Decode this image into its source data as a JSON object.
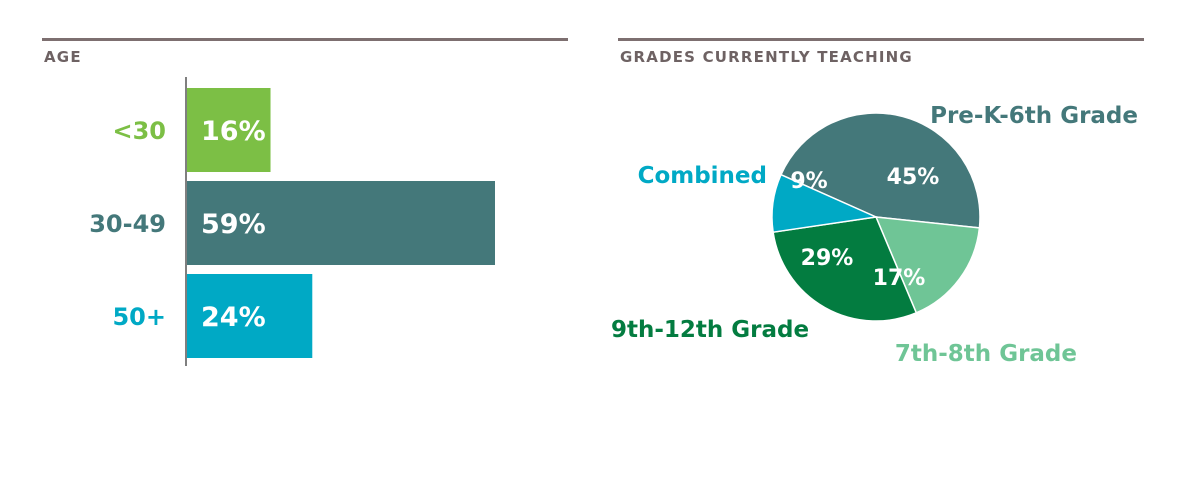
{
  "age_panel": {
    "title": "AGE"
  },
  "grades_panel": {
    "title": "GRADES CURRENTLY TEACHING"
  },
  "colors": {
    "light_green": "#7cbf45",
    "teal": "#44787a",
    "cyan": "#00a9c5",
    "dark_green": "#037c40",
    "mint": "#6fc596",
    "rule": "#7d6f70",
    "title_text": "#6e6263"
  },
  "chart_data": [
    {
      "type": "bar",
      "orientation": "horizontal",
      "title": "AGE",
      "categories": [
        "<30",
        "30-49",
        "50+"
      ],
      "values": [
        16,
        59,
        24
      ],
      "value_labels": [
        "16%",
        "59%",
        "24%"
      ],
      "category_colors": [
        "#7cbf45",
        "#44787a",
        "#00a9c5"
      ],
      "unit": "%"
    },
    {
      "type": "pie",
      "title": "GRADES CURRENTLY TEACHING",
      "slices": [
        {
          "label": "Pre-K-6th Grade",
          "value": 45,
          "value_label": "45%",
          "color": "#44787a"
        },
        {
          "label": "7th-8th Grade",
          "value": 17,
          "value_label": "17%",
          "color": "#6fc596"
        },
        {
          "label": "9th-12th Grade",
          "value": 29,
          "value_label": "29%",
          "color": "#037c40"
        },
        {
          "label": "Combined",
          "value": 9,
          "value_label": "9%",
          "color": "#00a9c5"
        }
      ]
    }
  ]
}
